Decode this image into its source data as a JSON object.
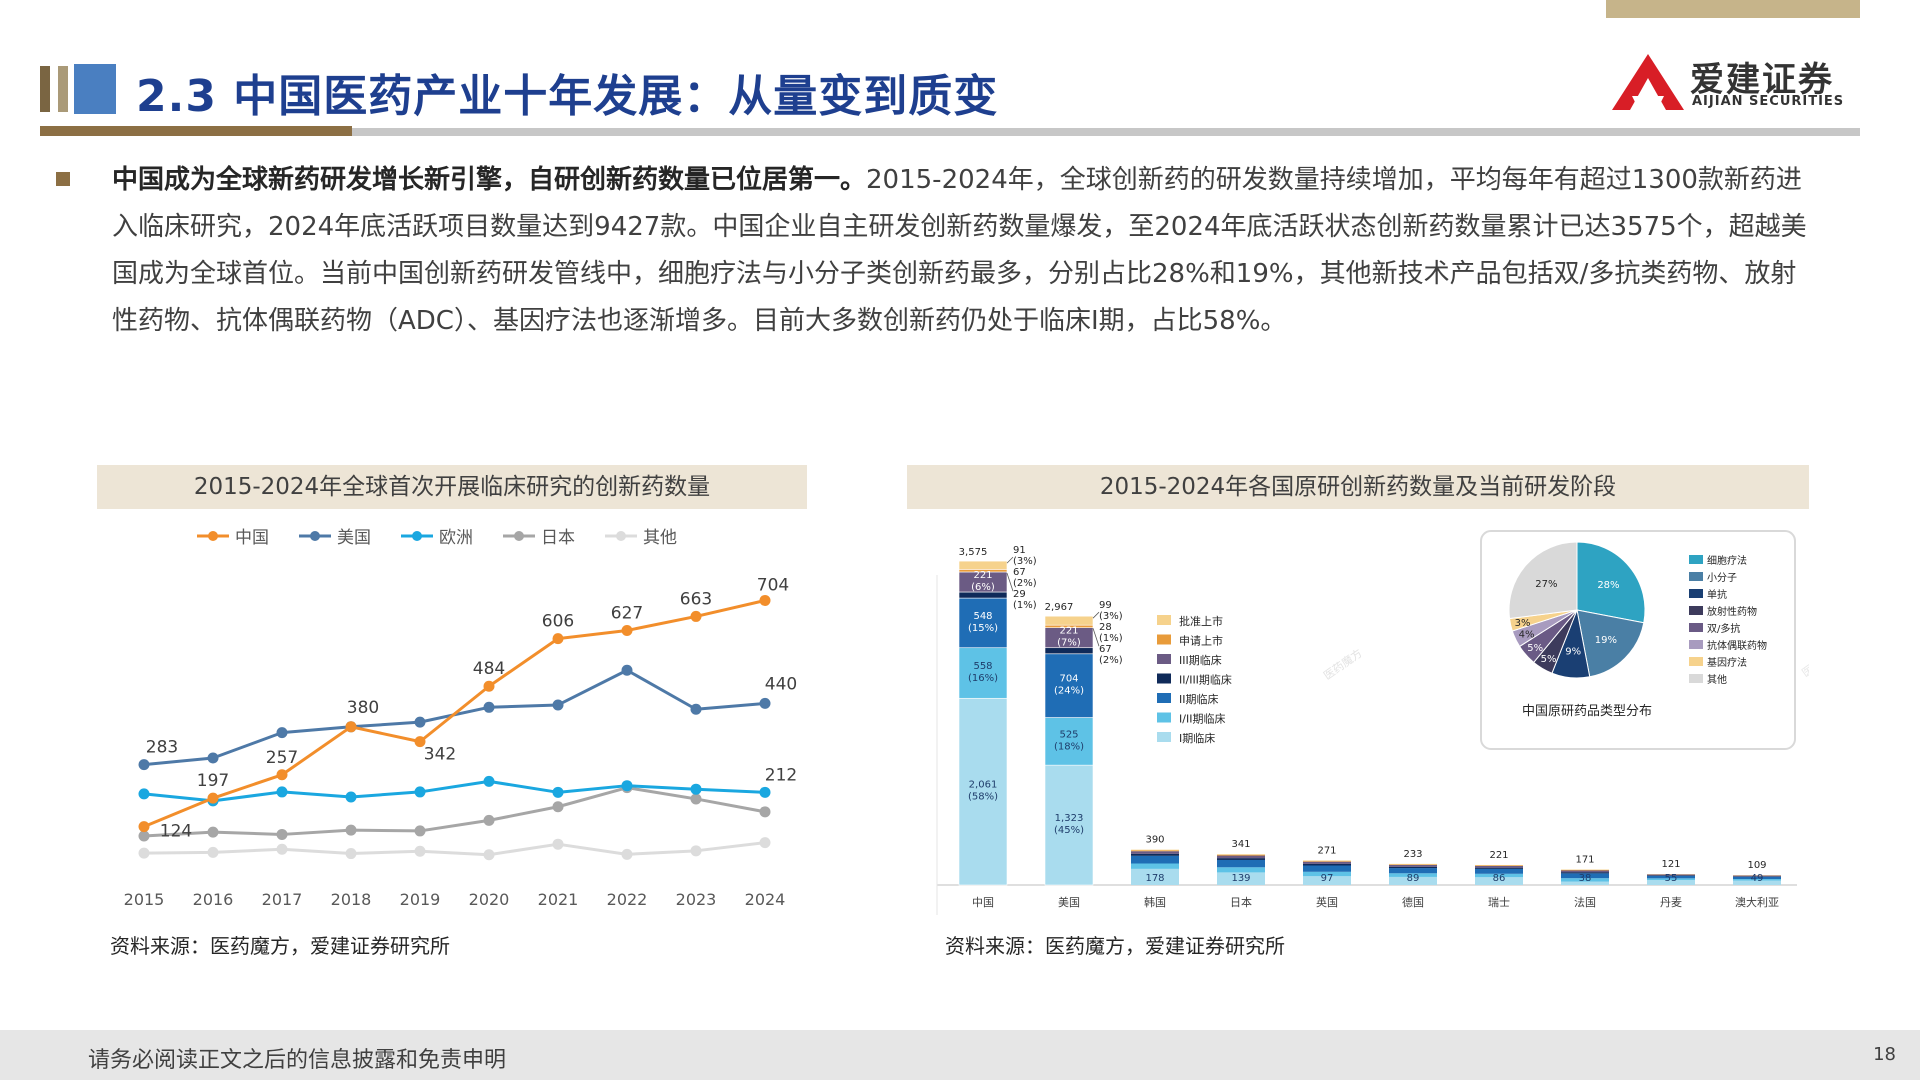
{
  "header": {
    "title": "2.3 中国医药产业十年发展：从量变到质变",
    "logo_cn": "爱建证券",
    "logo_en": "AIJIAN SECURITIES"
  },
  "body": {
    "bold_lead": "中国成为全球新药研发增长新引擎，自研创新药数量已位居第一。",
    "text": "2015-2024年，全球创新药的研发数量持续增加，平均每年有超过1300款新药进入临床研究，2024年底活跃项目数量达到9427款。中国企业自主研发创新药数量爆发，至2024年底活跃状态创新药数量累计已达3575个，超越美国成为全球首位。当前中国创新药研发管线中，细胞疗法与小分子类创新药最多，分别占比28%和19%，其他新技术产品包括双/多抗类药物、放射性药物、抗体偶联药物（ADC）、基因疗法也逐渐增多。目前大多数创新药仍处于临床I期，占比58%。"
  },
  "chart1_title": "2015-2024年全球首次开展临床研究的创新药数量",
  "chart2_title": "2015-2024年各国原研创新药数量及当前研发阶段",
  "source1": "资料来源：医药魔方，爱建证券研究所",
  "source2": "资料来源：医药魔方，爱建证券研究所",
  "footer": {
    "disclaimer": "请务必阅读正文之后的信息披露和免责申明",
    "page": "18"
  },
  "colors": {
    "china": "#f28e2b",
    "usa": "#4e79a7",
    "europe": "#1aa7e0",
    "japan": "#a6a6a6",
    "other": "#dcdcdc"
  },
  "chart_data": [
    {
      "type": "line",
      "x": [
        "2015",
        "2016",
        "2017",
        "2018",
        "2019",
        "2020",
        "2021",
        "2022",
        "2023",
        "2024"
      ],
      "ylim": [
        0,
        800
      ],
      "grid": false,
      "legend": "top",
      "series": [
        {
          "name": "中国",
          "color": "#f28e2b",
          "values": [
            124,
            197,
            257,
            380,
            342,
            484,
            606,
            627,
            663,
            704
          ],
          "labels": [
            124,
            197,
            257,
            null,
            342,
            484,
            606,
            627,
            663,
            704
          ]
        },
        {
          "name": "美国",
          "color": "#4e79a7",
          "values": [
            283,
            300,
            365,
            380,
            392,
            430,
            436,
            525,
            425,
            440
          ],
          "labels": [
            283,
            null,
            null,
            380,
            null,
            null,
            null,
            null,
            null,
            440
          ]
        },
        {
          "name": "欧洲",
          "color": "#1aa7e0",
          "values": [
            208,
            190,
            213,
            200,
            213,
            240,
            212,
            229,
            220,
            212
          ],
          "labels": [
            null,
            null,
            null,
            null,
            null,
            null,
            null,
            null,
            null,
            212
          ]
        },
        {
          "name": "日本",
          "color": "#a6a6a6",
          "values": [
            100,
            110,
            104,
            115,
            113,
            140,
            175,
            224,
            195,
            162
          ],
          "labels": []
        },
        {
          "name": "其他",
          "color": "#dcdcdc",
          "values": [
            56,
            58,
            66,
            55,
            61,
            52,
            79,
            53,
            62,
            83
          ],
          "labels": []
        }
      ]
    },
    {
      "type": "bar",
      "stacked": true,
      "categories": [
        "中国",
        "美国",
        "韩国",
        "日本",
        "英国",
        "德国",
        "瑞士",
        "法国",
        "丹麦",
        "澳大利亚"
      ],
      "totals": [
        3575,
        2967,
        390,
        341,
        271,
        233,
        221,
        171,
        121,
        109
      ],
      "phase1_values": [
        2061,
        1323,
        178,
        139,
        97,
        89,
        86,
        38,
        55,
        49
      ],
      "stages": [
        {
          "name": "I期临床",
          "color": "#a9dcee"
        },
        {
          "name": "I/II期临床",
          "color": "#5ec2e6"
        },
        {
          "name": "II期临床",
          "color": "#1f6db5"
        },
        {
          "name": "II/III期临床",
          "color": "#0f2a59"
        },
        {
          "name": "III期临床",
          "color": "#6b5b84"
        },
        {
          "name": "申请上市",
          "color": "#e89b3a"
        },
        {
          "name": "批准上市",
          "color": "#f6d28c"
        }
      ],
      "series_values": {
        "中国": [
          2061,
          558,
          548,
          67,
          221,
          29,
          91
        ],
        "美国": [
          1323,
          525,
          704,
          67,
          221,
          28,
          99
        ]
      },
      "segment_labels": {
        "中国": [
          "2,061\n(58%)",
          "558\n(16%)",
          "548\n(15%)",
          "",
          "221\n(6%)",
          "",
          ""
        ],
        "美国": [
          "1,323\n(45%)",
          "525\n(18%)",
          "704\n(24%)",
          "",
          "221\n(7%)",
          "",
          ""
        ]
      },
      "callouts": {
        "中国": [
          "91\n(3%)",
          "67\n(2%)",
          "29\n(1%)"
        ],
        "美国": [
          "99\n(3%)",
          "28\n(1%)",
          "67\n(2%)"
        ]
      },
      "pie": {
        "title": "中国原研药品类型分布",
        "slices": [
          {
            "name": "细胞疗法",
            "value": 28,
            "label": "28%",
            "color": "#2ea3c2"
          },
          {
            "name": "小分子",
            "value": 19,
            "label": "19%",
            "color": "#4a7fa5"
          },
          {
            "name": "单抗",
            "value": 9,
            "label": "9%",
            "color": "#1a3f73"
          },
          {
            "name": "放射性药物",
            "value": 5,
            "label": "5%",
            "color": "#3d3b5c"
          },
          {
            "name": "双/多抗",
            "value": 5,
            "label": "5%",
            "color": "#6a5a85"
          },
          {
            "name": "抗体偶联药物",
            "value": 4,
            "label": "4%",
            "color": "#a89bbf"
          },
          {
            "name": "基因疗法",
            "value": 3,
            "label": "3%",
            "color": "#f6d28c"
          },
          {
            "name": "其他",
            "value": 27,
            "label": "27%",
            "color": "#d9d9d9"
          }
        ]
      }
    }
  ]
}
